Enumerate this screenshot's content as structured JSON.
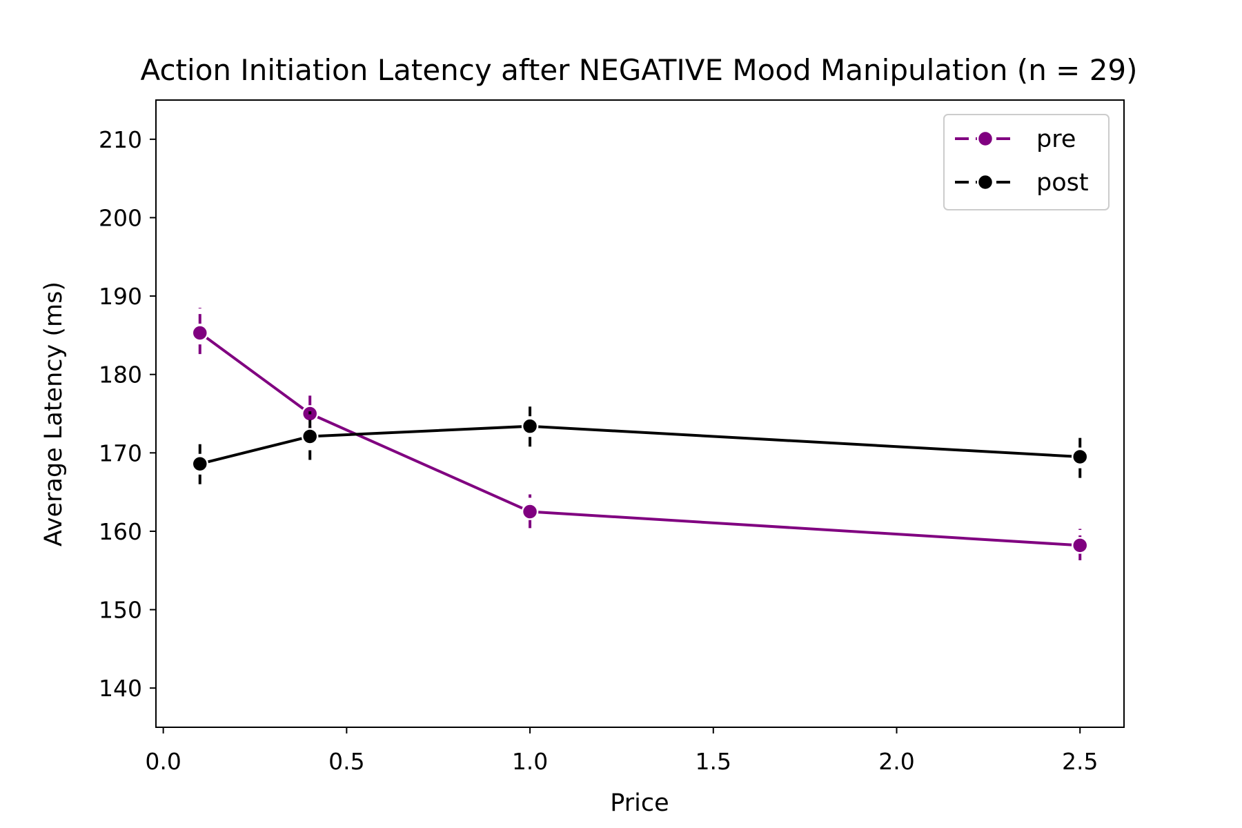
{
  "chart_data": {
    "type": "line",
    "title": "Action Initiation Latency after NEGATIVE Mood Manipulation (n = 29)",
    "xlabel": "Price",
    "ylabel": "Average Latency (ms)",
    "xlim": [
      -0.02,
      2.62
    ],
    "ylim": [
      135,
      215
    ],
    "xticks": [
      0.0,
      0.5,
      1.0,
      1.5,
      2.0,
      2.5
    ],
    "xtick_labels": [
      "0.0",
      "0.5",
      "1.0",
      "1.5",
      "2.0",
      "2.5"
    ],
    "yticks": [
      140,
      150,
      160,
      170,
      180,
      190,
      200,
      210
    ],
    "ytick_labels": [
      "140",
      "150",
      "160",
      "170",
      "180",
      "190",
      "200",
      "210"
    ],
    "grid": false,
    "legend_position": "top-right",
    "x": [
      0.1,
      0.4,
      1.0,
      2.5
    ],
    "series": [
      {
        "name": "pre",
        "color": "#800080",
        "values": [
          185.3,
          175.0,
          162.5,
          158.2
        ],
        "error_low": [
          182.6,
          172.2,
          160.4,
          156.3
        ],
        "error_high": [
          188.5,
          178.0,
          164.7,
          160.3
        ]
      },
      {
        "name": "post",
        "color": "#000000",
        "values": [
          168.6,
          172.1,
          173.4,
          169.5
        ],
        "error_low": [
          166.0,
          169.1,
          170.8,
          166.8
        ],
        "error_high": [
          171.4,
          175.3,
          176.3,
          172.4
        ]
      }
    ]
  }
}
